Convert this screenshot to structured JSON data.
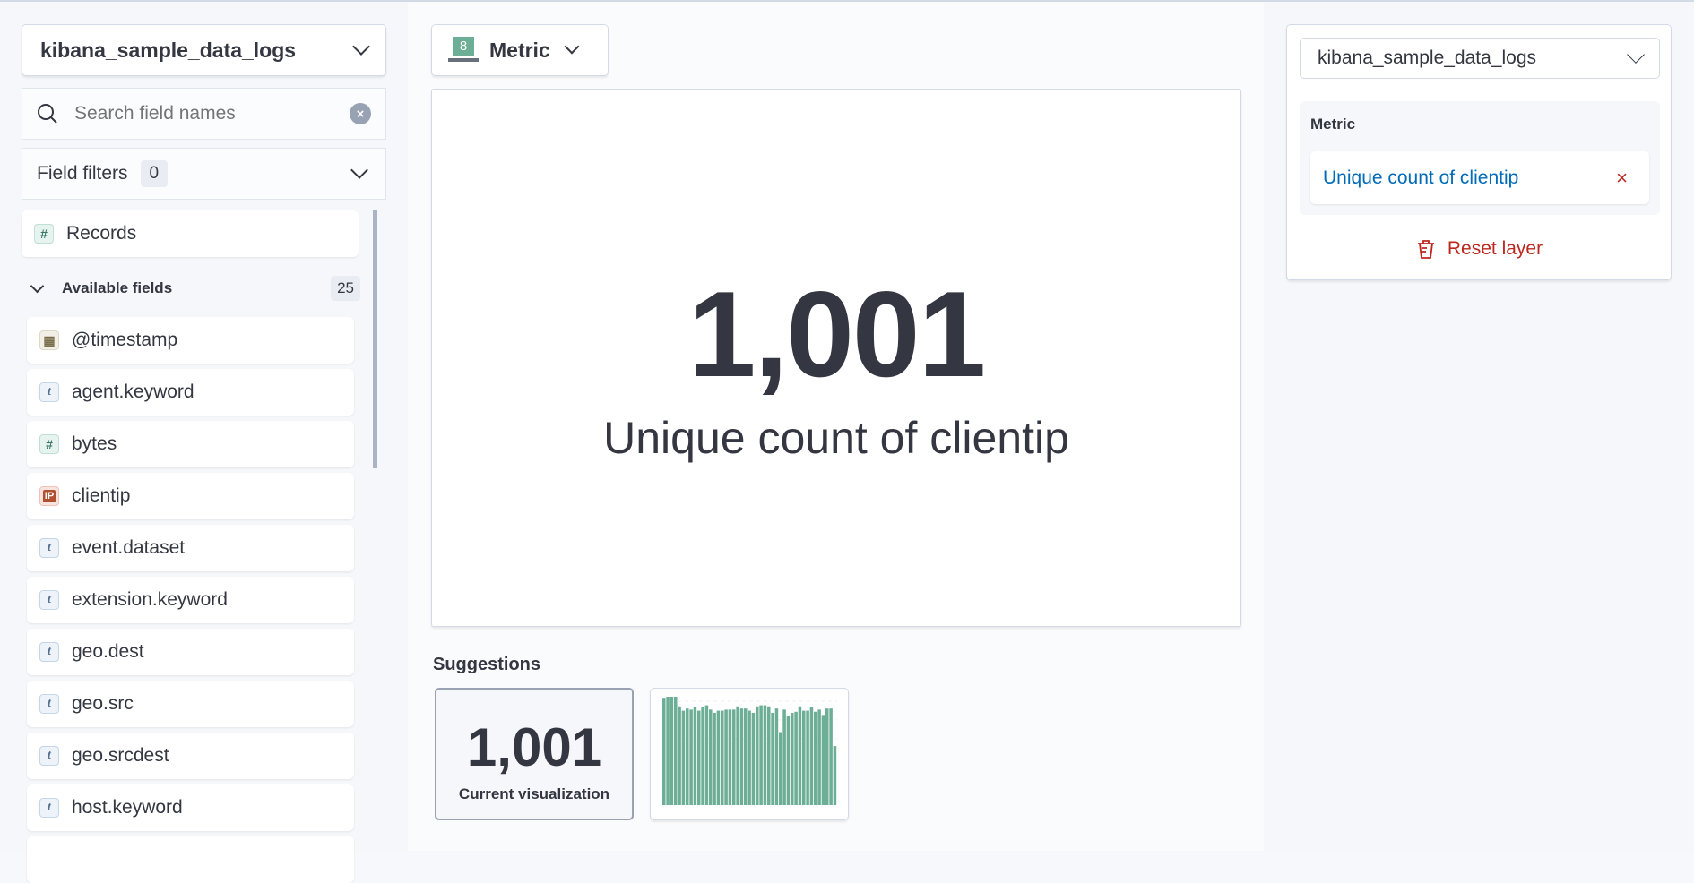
{
  "datasource": {
    "index": "kibana_sample_data_logs"
  },
  "search": {
    "placeholder": "Search field names"
  },
  "field_filters": {
    "label": "Field filters",
    "count": "0"
  },
  "records": {
    "label": "Records",
    "icon": "number-token-icon"
  },
  "available_fields": {
    "label": "Available fields",
    "count": "25",
    "items": [
      {
        "name": "@timestamp",
        "type": "date"
      },
      {
        "name": "agent.keyword",
        "type": "string"
      },
      {
        "name": "bytes",
        "type": "number"
      },
      {
        "name": "clientip",
        "type": "ip"
      },
      {
        "name": "event.dataset",
        "type": "string"
      },
      {
        "name": "extension.keyword",
        "type": "string"
      },
      {
        "name": "geo.dest",
        "type": "string"
      },
      {
        "name": "geo.src",
        "type": "string"
      },
      {
        "name": "geo.srcdest",
        "type": "string"
      },
      {
        "name": "host.keyword",
        "type": "string"
      }
    ]
  },
  "chart_switcher": {
    "label": "Metric",
    "icon_digit": "8"
  },
  "workspace": {
    "value": "1,001",
    "label": "Unique count of clientip"
  },
  "suggestions": {
    "title": "Suggestions",
    "current": {
      "value": "1,001",
      "label": "Current visualization"
    }
  },
  "chart_data": {
    "type": "bar",
    "values": [
      100,
      101,
      101,
      101,
      92,
      88,
      90,
      89,
      91,
      88,
      91,
      93,
      89,
      86,
      88,
      88,
      89,
      89,
      89,
      92,
      90,
      90,
      88,
      86,
      92,
      93,
      93,
      92,
      86,
      90,
      68,
      89,
      83,
      86,
      87,
      92,
      88,
      88,
      91,
      87,
      89,
      84,
      90,
      90,
      55
    ]
  },
  "config": {
    "index": "kibana_sample_data_logs",
    "group_label": "Metric",
    "dimension": "Unique count of clientip",
    "reset_label": "Reset layer"
  },
  "colors": {
    "accent": "#006bb8",
    "danger": "#bd271e",
    "bar": "#6dae96"
  }
}
